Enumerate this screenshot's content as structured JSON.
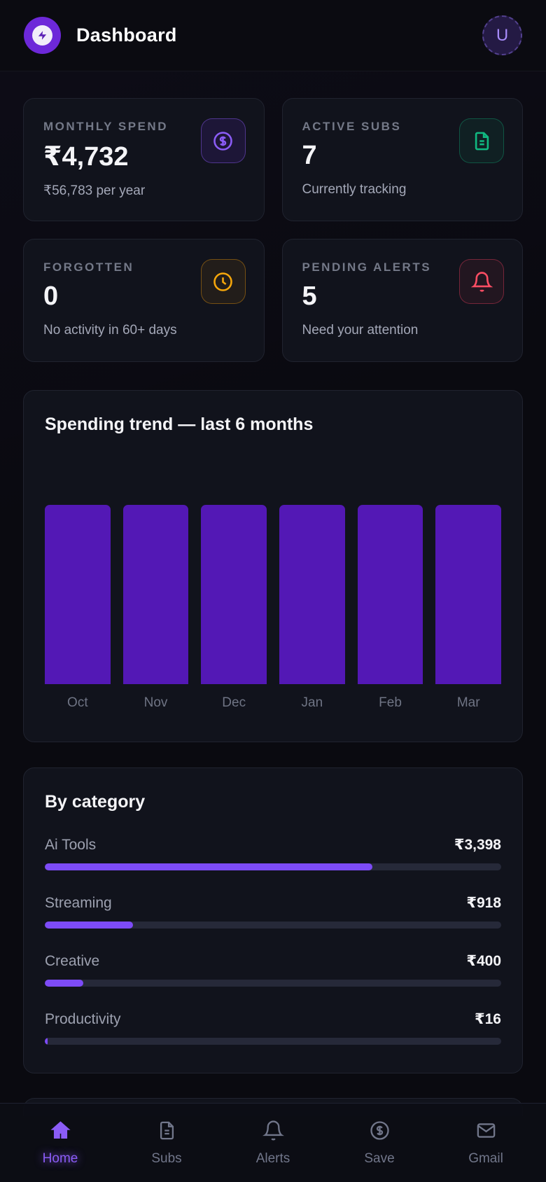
{
  "header": {
    "title": "Dashboard",
    "logo_icon": "zap-icon",
    "avatar_initial": "U"
  },
  "colors": {
    "page_bg": "#0a0a10",
    "card_bg": "#11131c",
    "card_border": "#20232f",
    "accent_purple": "#8b5cf6",
    "bar_purple": "#5318b5",
    "fill_purple": "#7d4bf7",
    "green": "#10b981",
    "amber": "#f5a60b",
    "red": "#fb4d63"
  },
  "stats": [
    {
      "label": "MONTHLY SPEND",
      "value": "₹4,732",
      "sub": "₹56,783 per year",
      "icon": "dollar-circle-icon",
      "accent": "#8b5cf6"
    },
    {
      "label": "ACTIVE SUBS",
      "value": "7",
      "sub": "Currently tracking",
      "icon": "file-text-icon",
      "accent": "#10b981"
    },
    {
      "label": "FORGOTTEN",
      "value": "0",
      "sub": "No activity in 60+ days",
      "icon": "clock-icon",
      "accent": "#f5a60b"
    },
    {
      "label": "PENDING ALERTS",
      "value": "5",
      "sub": "Need your attention",
      "icon": "bell-icon",
      "accent": "#fb4d63"
    }
  ],
  "chart_data": {
    "type": "bar",
    "title": "Spending trend — last 6 months",
    "categories": [
      "Oct",
      "Nov",
      "Dec",
      "Jan",
      "Feb",
      "Mar"
    ],
    "values_pct_of_max": [
      100,
      100,
      100,
      100,
      100,
      100
    ],
    "note": "all six bars rendered at equal full height",
    "bar_color": "#5318b5",
    "grid": false,
    "legend": false
  },
  "categories": {
    "title": "By category",
    "items": [
      {
        "label": "Ai Tools",
        "value": "₹3,398",
        "pct": 71.8
      },
      {
        "label": "Streaming",
        "value": "₹918",
        "pct": 19.4
      },
      {
        "label": "Creative",
        "value": "₹400",
        "pct": 8.5
      },
      {
        "label": "Productivity",
        "value": "₹16",
        "pct": 0.6
      }
    ]
  },
  "nav": {
    "items": [
      {
        "label": "Home",
        "icon": "home-icon",
        "active": true
      },
      {
        "label": "Subs",
        "icon": "file-text-icon",
        "active": false
      },
      {
        "label": "Alerts",
        "icon": "bell-icon",
        "active": false
      },
      {
        "label": "Save",
        "icon": "dollar-circle-icon",
        "active": false
      },
      {
        "label": "Gmail",
        "icon": "mail-icon",
        "active": false
      }
    ]
  }
}
